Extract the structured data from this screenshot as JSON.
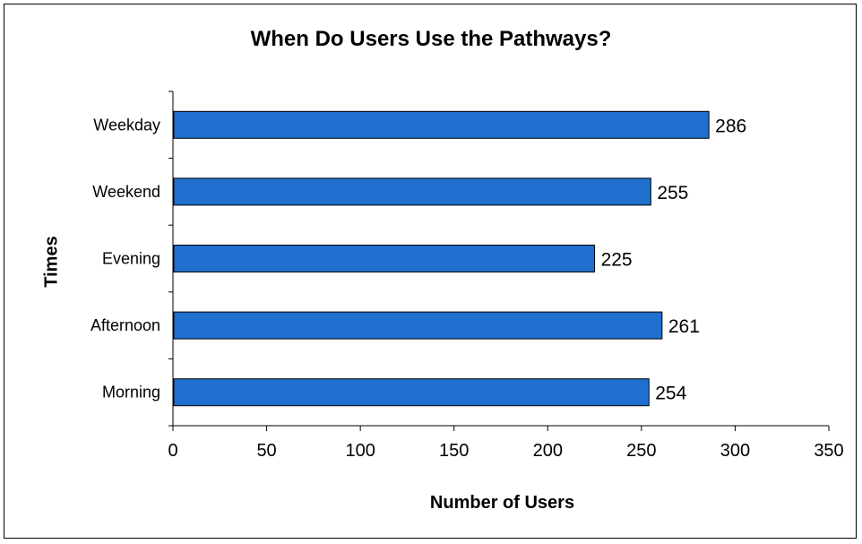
{
  "chart_data": {
    "type": "bar",
    "orientation": "horizontal",
    "title": "When Do Users Use the Pathways?",
    "xlabel": "Number of Users",
    "ylabel": "Times",
    "categories": [
      "Weekday",
      "Weekend",
      "Evening",
      "Afternoon",
      "Morning"
    ],
    "values": [
      286,
      255,
      225,
      261,
      254
    ],
    "xlim": [
      0,
      350
    ],
    "xticks": [
      "0",
      "50",
      "100",
      "150",
      "200",
      "250",
      "300",
      "350"
    ],
    "grid": false,
    "legend": "none",
    "bar_color": "#1F6FCE"
  }
}
